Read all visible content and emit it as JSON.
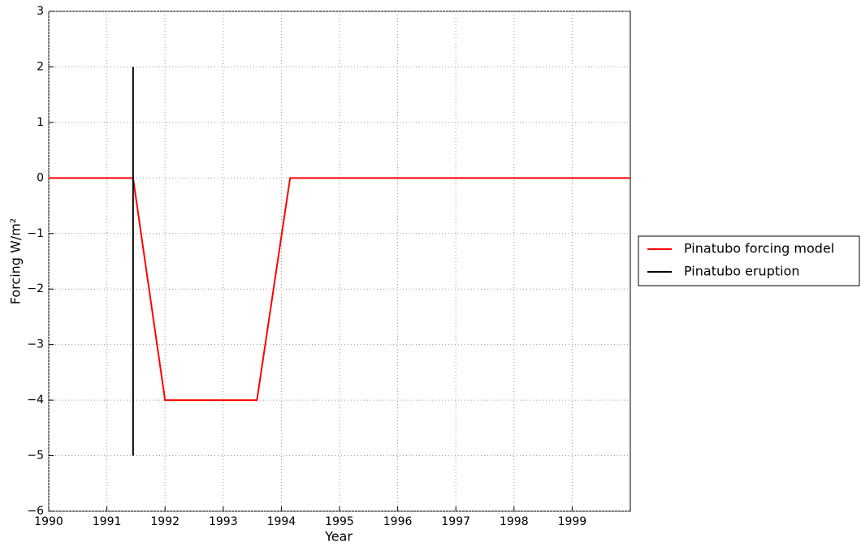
{
  "chart_data": {
    "type": "line",
    "xlabel": "Year",
    "ylabel": "Forcing W/m²",
    "xlim": [
      1990,
      2000
    ],
    "ylim": [
      -6,
      3
    ],
    "xticks": [
      1990,
      1991,
      1992,
      1993,
      1994,
      1995,
      1996,
      1997,
      1998,
      1999
    ],
    "yticks": [
      {
        "value": -6,
        "label": "−6"
      },
      {
        "value": -5,
        "label": "−5"
      },
      {
        "value": -4,
        "label": "−4"
      },
      {
        "value": -3,
        "label": "−3"
      },
      {
        "value": -2,
        "label": "−2"
      },
      {
        "value": -1,
        "label": "−1"
      },
      0,
      1,
      2,
      3
    ],
    "grid": true,
    "legend": "outside-right",
    "series": [
      {
        "name": "Pinatubo forcing model",
        "color": "#ff0000",
        "x": [
          1990,
          1991.45,
          1992,
          1993.58,
          1994.15,
          2000
        ],
        "values": [
          0,
          0,
          -4,
          -4,
          0,
          0
        ]
      },
      {
        "name": "Pinatubo eruption",
        "color": "#000000",
        "x": [
          1991.45,
          1991.45
        ],
        "values": [
          2,
          -5
        ]
      }
    ]
  }
}
